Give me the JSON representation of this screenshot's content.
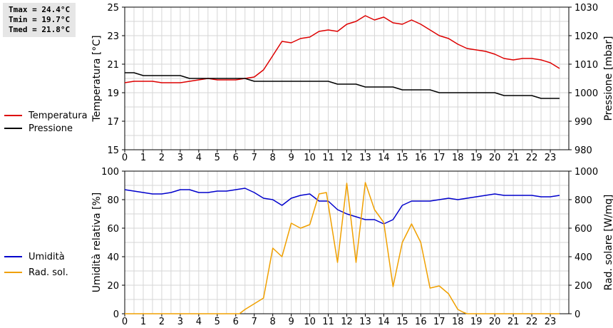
{
  "stats": {
    "tmax": "Tmax = 24.4°C",
    "tmin": "Tmin = 19.7°C",
    "tmed": "Tmed = 21.8°C"
  },
  "chart_data": [
    {
      "type": "line",
      "xlabel": "",
      "xlim": [
        0,
        24
      ],
      "xticks": [
        "0",
        "1",
        "2",
        "3",
        "4",
        "5",
        "6",
        "7",
        "8",
        "9",
        "10",
        "11",
        "12",
        "13",
        "14",
        "15",
        "16",
        "17",
        "18",
        "19",
        "20",
        "21",
        "22",
        "23"
      ],
      "ylabel": "Temperatura [°C]",
      "ylim": [
        15,
        25
      ],
      "yticks": [
        15,
        17,
        19,
        21,
        23,
        25
      ],
      "y2label": "Pressione [mbar]",
      "y2lim": [
        980,
        1030
      ],
      "y2ticks": [
        980,
        990,
        1000,
        1010,
        1020,
        1030
      ],
      "grid": true,
      "series": [
        {
          "name": "Temperatura",
          "axis": "left",
          "color": "#dd0000",
          "x": [
            0,
            0.5,
            1,
            1.5,
            2,
            2.5,
            3,
            3.5,
            4,
            4.5,
            5,
            5.5,
            6,
            6.5,
            7,
            7.5,
            8,
            8.5,
            9,
            9.5,
            10,
            10.5,
            11,
            11.5,
            12,
            12.5,
            13,
            13.5,
            14,
            14.5,
            15,
            15.5,
            16,
            16.5,
            17,
            17.5,
            18,
            18.5,
            19,
            19.5,
            20,
            20.5,
            21,
            21.5,
            22,
            22.5,
            23,
            23.5
          ],
          "values": [
            19.7,
            19.8,
            19.8,
            19.8,
            19.7,
            19.7,
            19.7,
            19.8,
            19.9,
            20.0,
            19.9,
            19.9,
            19.9,
            20.0,
            20.1,
            20.6,
            21.6,
            22.6,
            22.5,
            22.8,
            22.9,
            23.3,
            23.4,
            23.3,
            23.8,
            24.0,
            24.4,
            24.1,
            24.3,
            23.9,
            23.8,
            24.1,
            23.8,
            23.4,
            23.0,
            22.8,
            22.4,
            22.1,
            22.0,
            21.9,
            21.7,
            21.4,
            21.3,
            21.4,
            21.4,
            21.3,
            21.1,
            20.7
          ]
        },
        {
          "name": "Pressione",
          "axis": "right",
          "color": "#000000",
          "x": [
            0,
            0.5,
            1,
            1.5,
            2,
            2.5,
            3,
            3.5,
            4,
            4.5,
            5,
            5.5,
            6,
            6.5,
            7,
            7.5,
            8,
            8.5,
            9,
            9.5,
            10,
            10.5,
            11,
            11.5,
            12,
            12.5,
            13,
            13.5,
            14,
            14.5,
            15,
            15.5,
            16,
            16.5,
            17,
            17.5,
            18,
            18.5,
            19,
            19.5,
            20,
            20.5,
            21,
            21.5,
            22,
            22.5,
            23,
            23.5
          ],
          "values": [
            1007,
            1007,
            1006,
            1006,
            1006,
            1006,
            1006,
            1005,
            1005,
            1005,
            1005,
            1005,
            1005,
            1005,
            1004,
            1004,
            1004,
            1004,
            1004,
            1004,
            1004,
            1004,
            1004,
            1003,
            1003,
            1003,
            1002,
            1002,
            1002,
            1002,
            1001,
            1001,
            1001,
            1001,
            1000,
            1000,
            1000,
            1000,
            1000,
            1000,
            1000,
            999,
            999,
            999,
            999,
            998,
            998,
            998
          ]
        }
      ]
    },
    {
      "type": "line",
      "xlabel": "",
      "xlim": [
        0,
        24
      ],
      "xticks": [
        "0",
        "1",
        "2",
        "3",
        "4",
        "5",
        "6",
        "7",
        "8",
        "9",
        "10",
        "11",
        "12",
        "13",
        "14",
        "15",
        "16",
        "17",
        "18",
        "19",
        "20",
        "21",
        "22",
        "23"
      ],
      "ylabel": "Umidità relativa [%]",
      "ylim": [
        0,
        100
      ],
      "yticks": [
        0,
        20,
        40,
        60,
        80,
        100
      ],
      "y2label": "Rad. solare [W/mq]",
      "y2lim": [
        0,
        1000
      ],
      "y2ticks": [
        0,
        200,
        400,
        600,
        800,
        1000
      ],
      "grid": true,
      "series": [
        {
          "name": "Umidità",
          "axis": "left",
          "color": "#0000cc",
          "x": [
            0,
            0.5,
            1,
            1.5,
            2,
            2.5,
            3,
            3.5,
            4,
            4.5,
            5,
            5.5,
            6,
            6.5,
            7,
            7.5,
            8,
            8.5,
            9,
            9.5,
            10,
            10.5,
            11,
            11.5,
            12,
            12.5,
            13,
            13.5,
            14,
            14.5,
            15,
            15.5,
            16,
            16.5,
            17,
            17.5,
            18,
            18.5,
            19,
            19.5,
            20,
            20.5,
            21,
            21.5,
            22,
            22.5,
            23,
            23.5
          ],
          "values": [
            87,
            86,
            85,
            84,
            84,
            85,
            87,
            87,
            85,
            85,
            86,
            86,
            87,
            88,
            85,
            81,
            80,
            76,
            81,
            83,
            84,
            79,
            79,
            73,
            70,
            68,
            66,
            66,
            63,
            66,
            76,
            79,
            79,
            79,
            80,
            81,
            80,
            81,
            82,
            83,
            84,
            83,
            83,
            83,
            83,
            82,
            82,
            83
          ]
        },
        {
          "name": "Rad. sol.",
          "axis": "right",
          "color": "#f0a000",
          "x": [
            0,
            0.5,
            1,
            1.5,
            2,
            2.5,
            3,
            3.5,
            4,
            4.5,
            5,
            5.5,
            6,
            6.2,
            6.5,
            7,
            7.5,
            8,
            8.5,
            9,
            9.5,
            10,
            10.5,
            10.9,
            11.5,
            12,
            12.5,
            13,
            13.5,
            14,
            14.5,
            15,
            15.5,
            16,
            16.5,
            17,
            17.5,
            18,
            18.3,
            18.5,
            19,
            19.5,
            20,
            20.5,
            21,
            21.5,
            22,
            22.5,
            23,
            23.5
          ],
          "values": [
            0,
            0,
            0,
            0,
            0,
            0,
            0,
            0,
            0,
            0,
            0,
            0,
            0,
            0,
            30,
            70,
            110,
            460,
            400,
            635,
            600,
            625,
            840,
            850,
            360,
            915,
            360,
            920,
            730,
            640,
            190,
            500,
            630,
            500,
            180,
            195,
            140,
            30,
            10,
            0,
            0,
            0,
            0,
            0,
            0,
            0,
            0,
            0,
            0,
            0
          ]
        }
      ]
    }
  ]
}
